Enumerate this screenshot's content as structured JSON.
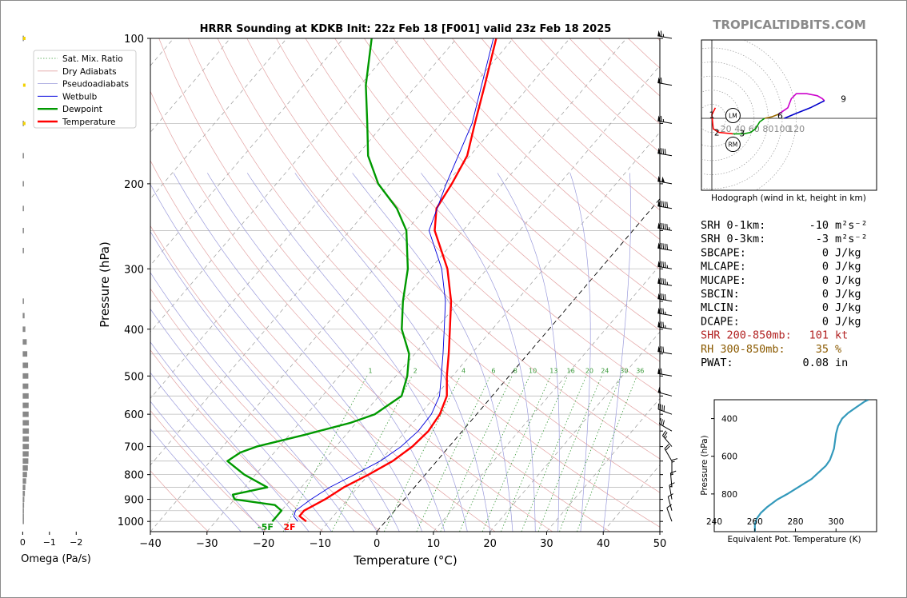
{
  "chart_data": {
    "type": "skew-t sounding",
    "title": "HRRR Sounding at KDKB Init: 22z Feb 18 [F001] valid 23z Feb 18 2025",
    "watermark": "TROPICALTIDBITS.COM",
    "xlabel": "Temperature (°C)",
    "ylabel": "Pressure (hPa)",
    "xlim": [
      -40,
      50
    ],
    "ylim": [
      1050,
      100
    ],
    "y_scale": "log",
    "x_ticks": [
      "−40",
      "−30",
      "−20",
      "−10",
      "0",
      "10",
      "20",
      "30",
      "40",
      "50"
    ],
    "y_ticks": [
      "100",
      "200",
      "300",
      "400",
      "500",
      "600",
      "700",
      "800",
      "900",
      "1000"
    ],
    "legend": [
      "Sat. Mix. Ratio",
      "Dry Adiabats",
      "Pseudoadiabats",
      "Wetbulb",
      "Dewpoint",
      "Temperature"
    ],
    "mixing_ratio_labels": [
      "1",
      "2",
      "4",
      "6",
      "8",
      "10",
      "13",
      "16",
      "20",
      "24",
      "30",
      "36"
    ],
    "surface_temperature_label": "2F",
    "surface_dewpoint_label": "-5F",
    "series": [
      {
        "name": "Temperature",
        "color": "#ff0000",
        "points": [
          [
            1000,
            -14
          ],
          [
            975,
            -16
          ],
          [
            950,
            -16
          ],
          [
            925,
            -15
          ],
          [
            900,
            -14
          ],
          [
            850,
            -12.5
          ],
          [
            800,
            -10
          ],
          [
            750,
            -7.8
          ],
          [
            700,
            -6.5
          ],
          [
            650,
            -6
          ],
          [
            600,
            -6.5
          ],
          [
            550,
            -8
          ],
          [
            500,
            -11
          ],
          [
            450,
            -14
          ],
          [
            400,
            -17.5
          ],
          [
            350,
            -21.5
          ],
          [
            300,
            -27
          ],
          [
            250,
            -35
          ],
          [
            225,
            -38
          ],
          [
            200,
            -39
          ],
          [
            175,
            -40.5
          ],
          [
            150,
            -44
          ],
          [
            125,
            -48
          ],
          [
            100,
            -53
          ]
        ]
      },
      {
        "name": "Dewpoint",
        "color": "#009900",
        "points": [
          [
            1000,
            -20
          ],
          [
            975,
            -20
          ],
          [
            950,
            -20
          ],
          [
            925,
            -22
          ],
          [
            900,
            -30
          ],
          [
            880,
            -31
          ],
          [
            850,
            -26
          ],
          [
            800,
            -32
          ],
          [
            750,
            -37
          ],
          [
            720,
            -36
          ],
          [
            700,
            -34
          ],
          [
            660,
            -27
          ],
          [
            625,
            -21
          ],
          [
            600,
            -18
          ],
          [
            550,
            -16
          ],
          [
            500,
            -18
          ],
          [
            450,
            -21
          ],
          [
            400,
            -26
          ],
          [
            350,
            -30
          ],
          [
            300,
            -34
          ],
          [
            250,
            -40
          ],
          [
            225,
            -45
          ],
          [
            200,
            -52
          ],
          [
            175,
            -58
          ],
          [
            150,
            -63
          ],
          [
            125,
            -69
          ],
          [
            100,
            -75
          ]
        ]
      },
      {
        "name": "Wetbulb",
        "color": "#0000dd",
        "points": [
          [
            1000,
            -15.5
          ],
          [
            975,
            -17
          ],
          [
            950,
            -17.5
          ],
          [
            925,
            -17
          ],
          [
            900,
            -16.5
          ],
          [
            850,
            -15
          ],
          [
            800,
            -12.5
          ],
          [
            750,
            -10
          ],
          [
            700,
            -8.5
          ],
          [
            650,
            -7.8
          ],
          [
            600,
            -8
          ],
          [
            550,
            -9.3
          ],
          [
            500,
            -12
          ],
          [
            450,
            -15
          ],
          [
            400,
            -18.5
          ],
          [
            350,
            -22.5
          ],
          [
            300,
            -28
          ],
          [
            250,
            -36
          ],
          [
            200,
            -40
          ],
          [
            150,
            -44.5
          ],
          [
            100,
            -53.5
          ]
        ]
      }
    ],
    "wind_barbs": [
      {
        "p": 1000,
        "spd": 10,
        "dir": 340
      },
      {
        "p": 950,
        "spd": 10,
        "dir": 345
      },
      {
        "p": 900,
        "spd": 15,
        "dir": 350
      },
      {
        "p": 850,
        "spd": 15,
        "dir": 355
      },
      {
        "p": 800,
        "spd": 15,
        "dir": 0
      },
      {
        "p": 750,
        "spd": 20,
        "dir": 330
      },
      {
        "p": 700,
        "spd": 25,
        "dir": 320
      },
      {
        "p": 650,
        "spd": 30,
        "dir": 300
      },
      {
        "p": 600,
        "spd": 40,
        "dir": 290
      },
      {
        "p": 550,
        "spd": 50,
        "dir": 285
      },
      {
        "p": 500,
        "spd": 60,
        "dir": 280
      },
      {
        "p": 450,
        "spd": 70,
        "dir": 280
      },
      {
        "p": 400,
        "spd": 75,
        "dir": 280
      },
      {
        "p": 375,
        "spd": 75,
        "dir": 280
      },
      {
        "p": 350,
        "spd": 80,
        "dir": 280
      },
      {
        "p": 325,
        "spd": 85,
        "dir": 280
      },
      {
        "p": 300,
        "spd": 85,
        "dir": 280
      },
      {
        "p": 275,
        "spd": 90,
        "dir": 280
      },
      {
        "p": 250,
        "spd": 95,
        "dir": 280
      },
      {
        "p": 225,
        "spd": 90,
        "dir": 280
      },
      {
        "p": 200,
        "spd": 100,
        "dir": 280
      },
      {
        "p": 175,
        "spd": 80,
        "dir": 280
      },
      {
        "p": 150,
        "spd": 65,
        "dir": 280
      },
      {
        "p": 125,
        "spd": 60,
        "dir": 280
      },
      {
        "p": 100,
        "spd": 65,
        "dir": 280
      }
    ],
    "omega_panel": {
      "xlabel": "Omega (Pa/s)",
      "xlim": [
        0.25,
        -2.5
      ],
      "x_ticks": [
        "0",
        "−1",
        "−2"
      ],
      "values": [
        [
          1000,
          -0.02
        ],
        [
          975,
          -0.03
        ],
        [
          950,
          -0.04
        ],
        [
          925,
          -0.05
        ],
        [
          900,
          -0.06
        ],
        [
          875,
          -0.08
        ],
        [
          850,
          -0.1
        ],
        [
          825,
          -0.13
        ],
        [
          800,
          -0.16
        ],
        [
          775,
          -0.19
        ],
        [
          750,
          -0.21
        ],
        [
          725,
          -0.22
        ],
        [
          700,
          -0.23
        ],
        [
          675,
          -0.23
        ],
        [
          650,
          -0.23
        ],
        [
          625,
          -0.23
        ],
        [
          600,
          -0.22
        ],
        [
          575,
          -0.22
        ],
        [
          550,
          -0.22
        ],
        [
          525,
          -0.21
        ],
        [
          500,
          -0.21
        ],
        [
          475,
          -0.2
        ],
        [
          450,
          -0.17
        ],
        [
          425,
          -0.15
        ],
        [
          400,
          -0.1
        ],
        [
          375,
          -0.07
        ],
        [
          350,
          -0.02
        ],
        [
          275,
          -0.03
        ],
        [
          250,
          -0.04
        ],
        [
          225,
          -0.04
        ],
        [
          200,
          -0.04
        ],
        [
          175,
          -0.02
        ],
        [
          150,
          -0.01
        ],
        [
          100,
          -0.02
        ]
      ],
      "yellow_marks_hpa": [
        100,
        125,
        150
      ]
    },
    "hodograph": {
      "caption": "Hodograph (wind in kt, height in km)",
      "ring_labels": [
        "20",
        "40",
        "60",
        "80",
        "100",
        "120"
      ],
      "markers": [
        "LM",
        "RM"
      ],
      "height_labels": [
        "1",
        "2",
        "3",
        "6",
        "9"
      ],
      "segments": [
        {
          "color": "#ff0000",
          "points": [
            [
              5,
              15
            ],
            [
              0,
              5
            ],
            [
              2,
              -15
            ],
            [
              10,
              -20
            ],
            [
              20,
              -21
            ],
            [
              30,
              -22
            ]
          ]
        },
        {
          "color": "#009900",
          "points": [
            [
              30,
              -22
            ],
            [
              45,
              -22
            ],
            [
              55,
              -20
            ],
            [
              62,
              -15
            ],
            [
              68,
              -5
            ],
            [
              75,
              0
            ]
          ]
        },
        {
          "color": "#9a6a00",
          "points": [
            [
              75,
              0
            ],
            [
              85,
              2
            ],
            [
              95,
              6
            ]
          ]
        },
        {
          "color": "#cc00cc",
          "points": [
            [
              95,
              6
            ],
            [
              108,
              15
            ],
            [
              113,
              28
            ],
            [
              120,
              35
            ],
            [
              135,
              35
            ],
            [
              150,
              32
            ],
            [
              157,
              28
            ],
            [
              160,
              25
            ]
          ]
        },
        {
          "color": "#0000cc",
          "points": [
            [
              160,
              25
            ],
            [
              140,
              15
            ],
            [
              120,
              7
            ],
            [
              103,
              0
            ]
          ]
        }
      ]
    },
    "stats": [
      {
        "label": "SRH 0-1km:",
        "value": "-10",
        "unit": "m²s⁻²",
        "color": "#000000"
      },
      {
        "label": "SRH 0-3km:",
        "value": "-3",
        "unit": "m²s⁻²",
        "color": "#000000"
      },
      {
        "label": "SBCAPE:",
        "value": "0",
        "unit": "J/kg",
        "color": "#000000"
      },
      {
        "label": "MLCAPE:",
        "value": "0",
        "unit": "J/kg",
        "color": "#000000"
      },
      {
        "label": "MUCAPE:",
        "value": "0",
        "unit": "J/kg",
        "color": "#000000"
      },
      {
        "label": "SBCIN:",
        "value": "0",
        "unit": "J/kg",
        "color": "#000000"
      },
      {
        "label": "MLCIN:",
        "value": "0",
        "unit": "J/kg",
        "color": "#000000"
      },
      {
        "label": "DCAPE:",
        "value": "0",
        "unit": "J/kg",
        "color": "#000000"
      },
      {
        "label": "SHR 200-850mb:",
        "value": "101",
        "unit": "kt",
        "color": "#b22222"
      },
      {
        "label": "RH 300-850mb:",
        "value": "35",
        "unit": "%",
        "color": "#8b5a00"
      },
      {
        "label": "PWAT:",
        "value": "0.08",
        "unit": "in",
        "color": "#000000"
      }
    ],
    "theta_e_panel": {
      "xlabel": "Equivalent Pot. Temperature (K)",
      "ylabel": "Pressure (hPa)",
      "xlim": [
        240,
        320
      ],
      "ylim": [
        1000,
        300
      ],
      "x_ticks": [
        "240",
        "260",
        "280",
        "300"
      ],
      "y_ticks": [
        "400",
        "600",
        "800"
      ],
      "color": "#3399bb",
      "points": [
        [
          1000,
          260
        ],
        [
          960,
          260
        ],
        [
          930,
          261
        ],
        [
          900,
          263
        ],
        [
          870,
          266
        ],
        [
          830,
          271
        ],
        [
          800,
          276
        ],
        [
          760,
          282
        ],
        [
          720,
          288
        ],
        [
          680,
          292
        ],
        [
          650,
          295
        ],
        [
          620,
          297
        ],
        [
          590,
          298
        ],
        [
          560,
          299
        ],
        [
          520,
          299.5
        ],
        [
          480,
          300
        ],
        [
          440,
          301
        ],
        [
          400,
          303
        ],
        [
          370,
          306
        ],
        [
          340,
          310
        ],
        [
          310,
          314
        ],
        [
          300,
          316
        ]
      ]
    }
  }
}
